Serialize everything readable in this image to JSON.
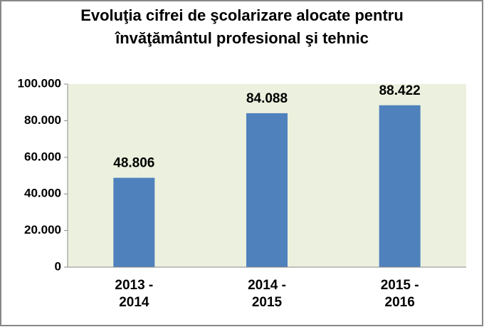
{
  "chart_data": {
    "type": "bar",
    "title": [
      "Evoluţia cifrei de şcolarizare alocate pentru",
      "învăţământul profesional şi tehnic"
    ],
    "categories": [
      "2013 - 2014",
      "2014 - 2015",
      "2015 - 2016"
    ],
    "values": [
      48806,
      84088,
      88422
    ],
    "value_labels": [
      "48.806",
      "84.088",
      "88.422"
    ],
    "color": "#4f81bd",
    "plot_background": "#ebf1de",
    "ylim": [
      0,
      100000
    ],
    "yticks": [
      0,
      {
        "value": 20000,
        "label": "20.000"
      },
      {
        "value": 40000,
        "label": "40.000"
      },
      {
        "value": 60000,
        "label": "60.000"
      },
      {
        "value": 80000,
        "label": "80.000"
      },
      {
        "value": 100000,
        "label": "100.000"
      }
    ],
    "grid": false
  }
}
